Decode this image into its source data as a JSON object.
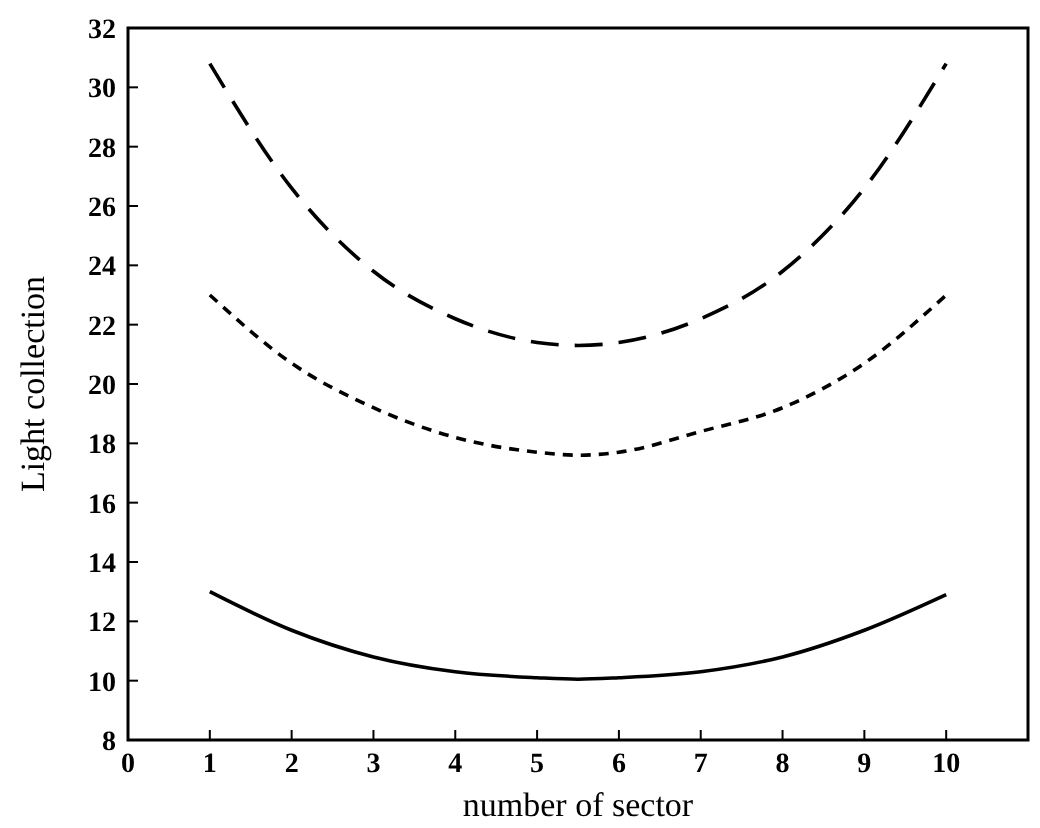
{
  "chart_data": {
    "type": "line",
    "xlabel": "number of sector",
    "ylabel": "Light collection",
    "x": [
      1,
      2,
      3,
      4,
      5,
      5.5,
      6,
      7,
      8,
      9,
      10
    ],
    "series": [
      {
        "color": "#000000",
        "line_style": "dashed",
        "values": [
          30.8,
          26.6,
          23.8,
          22.2,
          21.4,
          21.3,
          21.4,
          22.2,
          23.8,
          26.6,
          30.8
        ]
      },
      {
        "color": "#000000",
        "line_style": "dotted",
        "values": [
          23.0,
          20.7,
          19.2,
          18.2,
          17.7,
          17.6,
          17.7,
          18.4,
          19.2,
          20.7,
          23.0
        ]
      },
      {
        "color": "#000000",
        "line_style": "solid",
        "values": [
          13.0,
          11.7,
          10.8,
          10.3,
          10.1,
          10.05,
          10.1,
          10.3,
          10.8,
          11.7,
          12.9
        ]
      }
    ],
    "xlim": [
      0,
      11
    ],
    "xticks": [
      0,
      1,
      2,
      3,
      4,
      5,
      6,
      7,
      8,
      9,
      10
    ],
    "ylim": [
      8,
      32
    ],
    "yticks": [
      8,
      10,
      12,
      14,
      16,
      18,
      20,
      22,
      24,
      26,
      28,
      30,
      32
    ],
    "grid": false,
    "marker": "none"
  }
}
